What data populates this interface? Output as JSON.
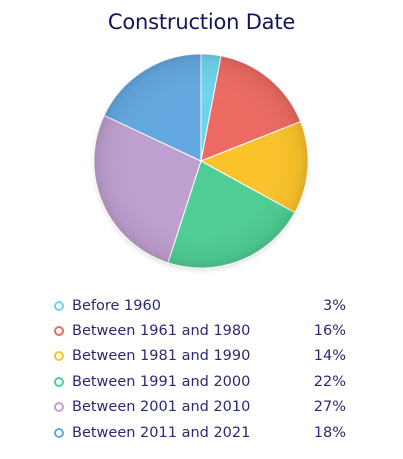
{
  "chart_data": {
    "type": "pie",
    "title": "Construction Date",
    "categories": [
      "Before 1960",
      "Between 1961 and 1980",
      "Between 1981 and 1990",
      "Between 1991 and 2000",
      "Between 2001 and 2010",
      "Between 2011 and 2021"
    ],
    "values": [
      3,
      16,
      14,
      22,
      27,
      18
    ],
    "value_labels": [
      "3%",
      "16%",
      "14%",
      "22%",
      "27%",
      "18%"
    ],
    "unit": "%",
    "colors": [
      "#6ed3ec",
      "#ec6a62",
      "#fbc32c",
      "#4fcd94",
      "#bf9fcf",
      "#63a8e0"
    ],
    "legend": "bottom"
  }
}
